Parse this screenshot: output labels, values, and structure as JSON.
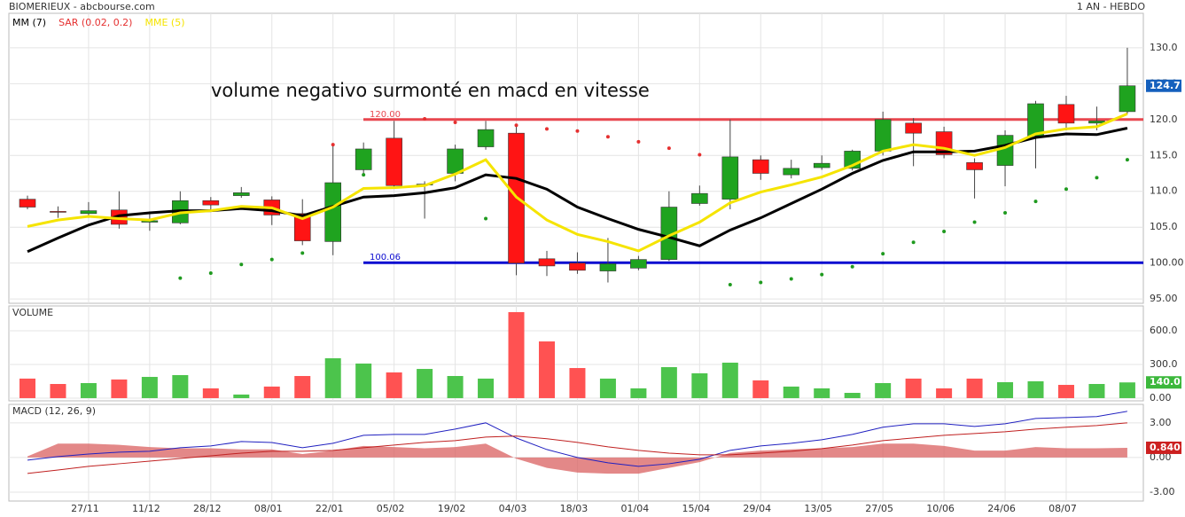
{
  "header": {
    "title": "BIOMERIEUX - abcbourse.com",
    "period": "1 AN - HEBDO"
  },
  "chart_data": [
    {
      "type": "candlestick",
      "annotation": "volume negativo surmonté en macd en vitesse",
      "open": [
        108.9,
        107.2,
        106.9,
        107.4,
        105.7,
        105.6,
        108.7,
        109.4,
        108.8,
        106.9,
        103.0,
        113.0,
        117.4,
        110.9,
        112.5,
        116.2,
        118.1,
        100.6,
        100.0,
        98.9,
        99.3,
        100.5,
        108.3,
        108.9,
        114.4,
        112.3,
        113.3,
        113.2,
        115.6,
        119.5,
        118.3,
        114.0,
        113.6,
        117.7,
        122.1,
        119.5,
        121.1
      ],
      "high": [
        109.4,
        107.9,
        108.5,
        110.0,
        107.2,
        110.0,
        109.2,
        110.6,
        109.3,
        108.9,
        116.6,
        116.8,
        119.8,
        111.4,
        116.5,
        119.8,
        119.0,
        101.7,
        101.5,
        103.5,
        101.0,
        110.0,
        110.8,
        120.0,
        115.0,
        114.4,
        115.0,
        115.8,
        121.1,
        120.2,
        119.0,
        114.6,
        118.5,
        122.6,
        123.3,
        121.8,
        130.0
      ],
      "low": [
        107.5,
        106.3,
        106.3,
        104.8,
        104.5,
        105.4,
        107.3,
        109.1,
        105.3,
        102.5,
        101.1,
        112.3,
        110.5,
        106.2,
        111.4,
        115.8,
        98.3,
        98.2,
        98.5,
        97.3,
        99.0,
        100.3,
        108.0,
        107.5,
        111.6,
        111.8,
        113.0,
        112.9,
        115.0,
        113.5,
        114.6,
        109.0,
        110.7,
        113.2,
        118.5,
        118.5,
        120.8
      ],
      "close": [
        107.8,
        107.1,
        107.3,
        105.4,
        105.9,
        108.7,
        108.1,
        109.8,
        106.7,
        103.1,
        111.2,
        115.9,
        110.8,
        111.0,
        115.9,
        118.6,
        100.0,
        99.6,
        99.0,
        99.9,
        100.5,
        107.8,
        109.7,
        114.8,
        112.5,
        113.2,
        113.9,
        115.6,
        120.0,
        118.1,
        115.1,
        113.0,
        117.8,
        122.2,
        119.5,
        119.8,
        124.7
      ],
      "up_color": "#1fa31f",
      "down_color": "#ff1414",
      "last_color": "#1560bd",
      "series": [
        {
          "name": "MM (7)",
          "color": "#000000",
          "style": "line",
          "values": [
            101.6,
            103.5,
            105.3,
            106.6,
            107.0,
            107.3,
            107.3,
            107.6,
            107.3,
            106.6,
            107.9,
            109.2,
            109.4,
            109.8,
            110.5,
            112.3,
            111.8,
            110.3,
            107.8,
            106.2,
            104.7,
            103.6,
            102.4,
            104.6,
            106.3,
            108.3,
            110.3,
            112.5,
            114.3,
            115.5,
            115.5,
            115.6,
            116.4,
            117.5,
            118.0,
            117.9,
            118.8
          ]
        },
        {
          "name": "SAR (0.02, 0.2)",
          "color": "#e53030",
          "below_color": "#1f9a1f",
          "style": "dots",
          "values": [
            null,
            null,
            null,
            null,
            null,
            97.9,
            98.6,
            99.8,
            100.5,
            101.4,
            116.5,
            112.3,
            null,
            120.1,
            119.6,
            106.2,
            119.2,
            118.7,
            118.4,
            117.6,
            116.9,
            116.0,
            115.1,
            97.0,
            97.3,
            97.8,
            98.4,
            99.5,
            101.3,
            102.9,
            104.4,
            105.7,
            107.0,
            108.6,
            110.3,
            111.9,
            114.4
          ]
        },
        {
          "name": "MME (5)",
          "color": "#f5e400",
          "style": "line",
          "values": [
            105.1,
            106.0,
            106.5,
            106.2,
            106.0,
            107.0,
            107.3,
            107.9,
            107.7,
            106.2,
            107.8,
            110.4,
            110.5,
            110.8,
            112.4,
            114.4,
            109.2,
            106.0,
            104.0,
            103.0,
            101.7,
            103.8,
            105.7,
            108.4,
            109.9,
            110.9,
            112.0,
            113.6,
            115.6,
            116.5,
            116.0,
            115.0,
            116.1,
            118.0,
            118.7,
            119.0,
            120.8
          ]
        }
      ],
      "hlines": [
        {
          "value": 120,
          "label": "120.00",
          "color": "#e8474f"
        },
        {
          "value": 100.06,
          "label": "100.06",
          "color": "#0a0ad0"
        }
      ],
      "ylim": [
        94.4,
        134.8
      ],
      "yticks": [
        {
          "value": 95,
          "label": "95.00"
        },
        {
          "value": 100,
          "label": "100.00"
        },
        {
          "value": 105,
          "label": "105.0"
        },
        {
          "value": 110,
          "label": "110.0"
        },
        {
          "value": 115,
          "label": "115.0"
        },
        {
          "value": 120,
          "label": "120.0"
        },
        {
          "value": 125,
          "label": "125.0"
        },
        {
          "value": 130,
          "label": "130.0"
        }
      ],
      "grid": true
    },
    {
      "type": "bar",
      "label": "VOLUME",
      "label_color": "#3cb83c",
      "values": [
        174,
        126,
        134,
        166,
        189,
        205,
        87,
        32,
        103,
        197,
        355,
        308,
        229,
        260,
        197,
        174,
        766,
        505,
        268,
        174,
        87,
        276,
        221,
        316,
        158,
        103,
        87,
        47,
        134,
        174,
        87,
        174,
        142,
        150,
        118,
        126,
        140
      ],
      "value_labels": [
        null,
        null,
        null,
        null,
        null,
        null,
        null,
        null,
        null,
        null,
        null,
        null,
        null,
        null,
        null,
        null,
        null,
        null,
        null,
        null,
        null,
        null,
        null,
        null,
        null,
        null,
        null,
        null,
        null,
        null,
        null,
        null,
        null,
        null,
        null,
        null,
        "140.0"
      ],
      "up_color": "#4cc44c",
      "down_color": "#ff5252",
      "last_color": "#3cb83c",
      "ylim": [
        -24,
        821
      ],
      "yticks": [
        {
          "value": 0,
          "label": "0.00"
        },
        {
          "value": 300,
          "label": "300.0"
        },
        {
          "value": 600,
          "label": "600.0"
        }
      ],
      "grid": true
    },
    {
      "type": "line",
      "label": "MACD (12, 26, 9)",
      "label_color": "#3a3ab0",
      "categories": [
        null,
        null,
        "27/11",
        null,
        "11/12",
        null,
        "28/12",
        null,
        "08/01",
        null,
        "22/01",
        null,
        "05/02",
        null,
        "19/02",
        null,
        "04/03",
        null,
        "18/03",
        null,
        "01/04",
        null,
        "15/04",
        null,
        "29/04",
        null,
        "13/05",
        null,
        "27/05",
        null,
        "10/06",
        null,
        "24/06",
        null,
        "08/07",
        null,
        null
      ],
      "series": [
        {
          "color": "#2020c0",
          "values": [
            -0.23,
            0.08,
            0.3,
            0.46,
            0.54,
            0.85,
            1.0,
            1.38,
            1.3,
            0.85,
            1.23,
            1.92,
            2.0,
            2.0,
            2.46,
            3.0,
            1.69,
            0.69,
            0,
            -0.46,
            -0.77,
            -0.54,
            -0.15,
            0.62,
            1.0,
            1.23,
            1.54,
            2.0,
            2.62,
            2.92,
            2.92,
            2.69,
            2.92,
            3.38,
            3.46,
            3.54,
            4.0
          ]
        },
        {
          "color": "#c02020",
          "values": [
            -1.38,
            -1.08,
            -0.77,
            -0.54,
            -0.31,
            -0.08,
            0.15,
            0.38,
            0.54,
            0.54,
            0.62,
            0.85,
            1.08,
            1.31,
            1.46,
            1.77,
            1.85,
            1.62,
            1.31,
            0.92,
            0.62,
            0.38,
            0.23,
            0.23,
            0.38,
            0.54,
            0.77,
            1.08,
            1.46,
            1.69,
            1.92,
            2.08,
            2.23,
            2.46,
            2.62,
            2.77,
            3.0
          ]
        }
      ],
      "histogram": {
        "color": "#d96060",
        "last_color": "#cc2020",
        "values": [
          0.1,
          1.2,
          1.2,
          1.1,
          0.9,
          0.8,
          0.8,
          0.7,
          0.7,
          0.3,
          0.6,
          1.0,
          0.9,
          0.8,
          0.9,
          1.2,
          -0.1,
          -0.9,
          -1.3,
          -1.4,
          -1.4,
          -0.9,
          -0.4,
          0.4,
          0.6,
          0.7,
          0.8,
          0.9,
          1.2,
          1.2,
          1.0,
          0.6,
          0.6,
          0.9,
          0.8,
          0.8,
          0.84
        ],
        "value_labels": [
          null,
          null,
          null,
          null,
          null,
          null,
          null,
          null,
          null,
          null,
          null,
          null,
          null,
          null,
          null,
          null,
          null,
          null,
          null,
          null,
          null,
          null,
          null,
          null,
          null,
          null,
          null,
          null,
          null,
          null,
          null,
          null,
          null,
          null,
          null,
          null,
          "0.840"
        ]
      },
      "ylim": [
        -3.77,
        4.6
      ],
      "yticks": [
        {
          "value": -3,
          "label": "-3.00"
        },
        {
          "value": 0,
          "label": "0.00"
        },
        {
          "value": 3,
          "label": "3.00"
        }
      ],
      "grid": true
    }
  ]
}
